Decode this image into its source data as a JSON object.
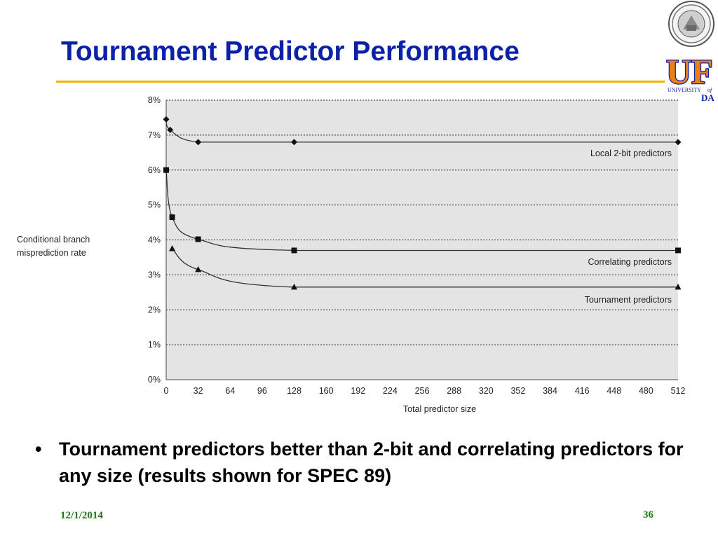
{
  "slide": {
    "title": "Tournament Predictor Performance",
    "bullet": "•",
    "bullet_text": "Tournament predictors better than 2-bit and correlating predictors for any size (results shown for SPEC 89)",
    "date": "12/1/2014",
    "page_number": "36"
  },
  "logo": {
    "letters": "UF",
    "university_line_a": "UNIVERSITY",
    "university_line_b": "of",
    "state_suffix": "DA",
    "colors": {
      "blue": "#0b21a8",
      "orange": "#e8801a"
    }
  },
  "chart_data": {
    "type": "line",
    "xlabel": "Total predictor size",
    "ylabel_lines": [
      "Conditional branch",
      "misprediction rate"
    ],
    "x_ticks": [
      0,
      32,
      64,
      96,
      128,
      160,
      192,
      224,
      256,
      288,
      320,
      352,
      384,
      416,
      448,
      480,
      512
    ],
    "y_ticks": [
      "0%",
      "1%",
      "2%",
      "3%",
      "4%",
      "5%",
      "6%",
      "7%",
      "8%"
    ],
    "xlim": [
      0,
      512
    ],
    "ylim": [
      0,
      8
    ],
    "grid": "horizontal-dotted",
    "background": "#e4e4e4",
    "series": [
      {
        "name": "Local 2-bit predictors",
        "marker": "diamond",
        "x": [
          0,
          4,
          32,
          128,
          512
        ],
        "y": [
          7.45,
          7.15,
          6.8,
          6.8,
          6.8
        ]
      },
      {
        "name": "Correlating predictors",
        "marker": "square",
        "x": [
          0,
          6,
          32,
          128,
          512
        ],
        "y": [
          6.0,
          4.65,
          4.02,
          3.7,
          3.7
        ]
      },
      {
        "name": "Tournament predictors",
        "marker": "triangle",
        "x": [
          6,
          32,
          128,
          512
        ],
        "y": [
          3.75,
          3.15,
          2.65,
          2.65
        ]
      }
    ]
  }
}
